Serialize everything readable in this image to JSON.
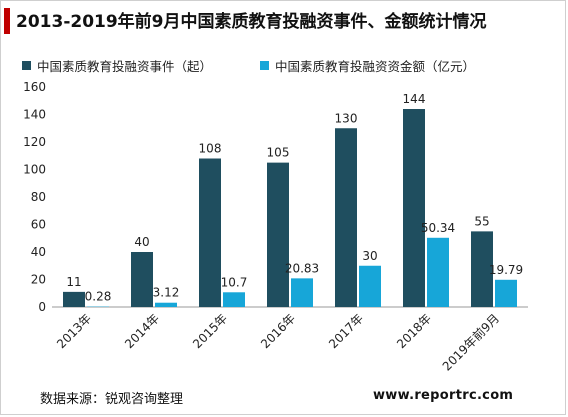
{
  "title": "2013-2019年前9月中国素质教育投融资事件、金额统计情况",
  "source": "数据来源：锐观咨询整理",
  "website": "www.reportrc.com",
  "colors": {
    "series1": "#1f4e5f",
    "series2": "#17a6d8",
    "title_accent": "#c00000"
  },
  "chart_data": {
    "type": "bar",
    "title": "2013-2019年前9月中国素质教育投融资事件、金额统计情况",
    "categories": [
      "2013年",
      "2014年",
      "2015年",
      "2016年",
      "2017年",
      "2018年",
      "2019年前9月"
    ],
    "series": [
      {
        "name": "中国素质教育投融资事件（起）",
        "values": [
          11,
          40,
          108,
          105,
          130,
          144,
          55
        ],
        "labels": [
          "11",
          "40",
          "108",
          "105",
          "130",
          "144",
          "55"
        ]
      },
      {
        "name": "中国素质教育投融资资金额（亿元）",
        "values": [
          0.28,
          3.12,
          10.7,
          20.83,
          30,
          50.34,
          19.79
        ],
        "labels": [
          "0.28",
          "3.12",
          "10.7",
          "20.83",
          "30",
          "50.34",
          "19.79"
        ]
      }
    ],
    "yticks": [
      "0",
      "20",
      "40",
      "60",
      "80",
      "100",
      "120",
      "140",
      "160"
    ],
    "ylim": [
      0,
      160
    ],
    "grid": false,
    "legend": "top-left"
  }
}
